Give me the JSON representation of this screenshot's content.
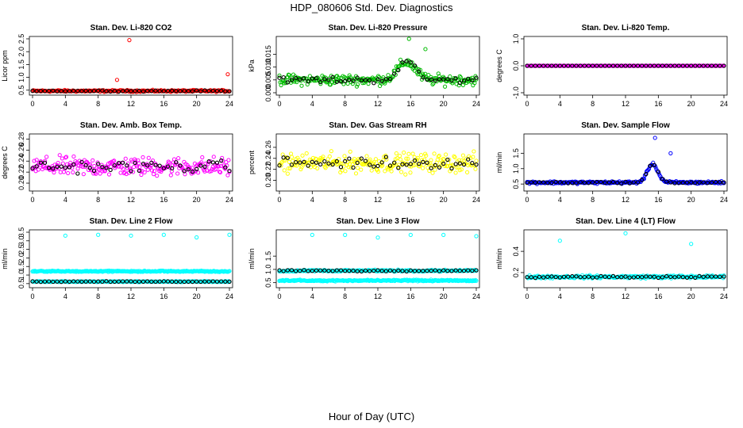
{
  "title": "HDP_080606  Std. Dev. Diagnostics",
  "xlabel": "Hour of Day (UTC)",
  "chart_data": [
    {
      "type": "scatter",
      "title": "Stan. Dev. Li-820 CO2",
      "ylabel": "Licor ppm",
      "color": "#ff0000",
      "xlim": [
        0,
        24
      ],
      "ylim": [
        0.4,
        2.5
      ],
      "xticks": [
        "0",
        "4",
        "8",
        "12",
        "16",
        "20",
        "24"
      ],
      "yticks": [
        "0.5",
        "1.0",
        "1.5",
        "2.0",
        "2.5"
      ],
      "ytick_values": [
        0.5,
        1.0,
        1.5,
        2.0,
        2.5
      ],
      "base": 0.47,
      "noise": 0.05,
      "bump_center": 15.5,
      "bump_height": 0,
      "bump_width": 1,
      "outliers": [
        [
          10.3,
          0.9
        ],
        [
          11.8,
          2.45
        ],
        [
          23.8,
          1.12
        ]
      ]
    },
    {
      "type": "scatter",
      "title": "Stan. Dev. Li-820 Pressure",
      "ylabel": "kPa",
      "color": "#00bb00",
      "xlim": [
        0,
        24
      ],
      "ylim": [
        0,
        0.021
      ],
      "xticks": [
        "0",
        "4",
        "8",
        "12",
        "16",
        "20",
        "24"
      ],
      "yticks": [
        "0.000",
        "0.005",
        "0.010",
        "0.015"
      ],
      "ytick_values": [
        0,
        0.005,
        0.01,
        0.015
      ],
      "base": 0.005,
      "noise": 0.003,
      "bump_center": 15.5,
      "bump_height": 0.007,
      "bump_width": 1.5,
      "outliers": [
        [
          15.8,
          0.021
        ],
        [
          17.8,
          0.017
        ]
      ]
    },
    {
      "type": "scatter",
      "title": "Stan. Dev. Li-820 Temp.",
      "ylabel": "degrees C",
      "color": "#ff00ff",
      "xlim": [
        0,
        24
      ],
      "ylim": [
        -1,
        1
      ],
      "xticks": [
        "0",
        "4",
        "8",
        "12",
        "16",
        "20",
        "24"
      ],
      "yticks": [
        "-1.0",
        "0.0",
        "1.0"
      ],
      "ytick_values": [
        -1,
        0,
        1
      ],
      "base": 0,
      "noise": 0,
      "bump_center": 15.5,
      "bump_height": 0,
      "bump_width": 1,
      "outliers": []
    },
    {
      "type": "scatter",
      "title": "Stan. Dev. Amb. Box Temp.",
      "ylabel": "degrees C",
      "color": "#ff00ff",
      "xlim": [
        0,
        24
      ],
      "ylim": [
        0.19,
        0.285
      ],
      "xticks": [
        "0",
        "4",
        "8",
        "12",
        "16",
        "20",
        "24"
      ],
      "yticks": [
        "0.20",
        "0.22",
        "0.24",
        "0.26",
        "0.28"
      ],
      "ytick_values": [
        0.2,
        0.22,
        0.24,
        0.26,
        0.28
      ],
      "base": 0.23,
      "noise": 0.025,
      "bump_center": 15.5,
      "bump_height": 0,
      "bump_width": 1,
      "outliers": []
    },
    {
      "type": "scatter",
      "title": "Stan. Dev. Gas Stream RH",
      "ylabel": "percent",
      "color": "#ffff00",
      "xlim": [
        0,
        24
      ],
      "ylim": [
        0.185,
        0.28
      ],
      "xticks": [
        "0",
        "4",
        "8",
        "12",
        "16",
        "20",
        "24"
      ],
      "yticks": [
        "0.20",
        "0.22",
        "0.24",
        "0.26"
      ],
      "ytick_values": [
        0.2,
        0.22,
        0.24,
        0.26
      ],
      "base": 0.232,
      "noise": 0.025,
      "bump_center": 15.5,
      "bump_height": 0,
      "bump_width": 1,
      "outliers": []
    },
    {
      "type": "scatter",
      "title": "Stan. Dev. Sample Flow",
      "ylabel": "ml/min",
      "color": "#0000ff",
      "xlim": [
        0,
        24
      ],
      "ylim": [
        0.35,
        2.05
      ],
      "xticks": [
        "0",
        "4",
        "8",
        "12",
        "16",
        "20",
        "24"
      ],
      "yticks": [
        "0.5",
        "1.0",
        "1.5"
      ],
      "ytick_values": [
        0.5,
        1.0,
        1.5
      ],
      "base": 0.55,
      "noise": 0.06,
      "bump_center": 15.3,
      "bump_height": 0.6,
      "bump_width": 0.9,
      "outliers": [
        [
          15.6,
          2.0
        ],
        [
          17.5,
          1.5
        ]
      ]
    },
    {
      "type": "scatter",
      "title": "Stan. Dev. Line 2 Flow",
      "ylabel": "ml/min",
      "color": "#00ffff",
      "xlim": [
        0,
        24
      ],
      "ylim": [
        0.4,
        3.5
      ],
      "xticks": [
        "0",
        "4",
        "8",
        "12",
        "16",
        "20",
        "24"
      ],
      "yticks": [
        "0.5",
        "1.0",
        "1.5",
        "2.0",
        "2.5",
        "3.0",
        "3.5"
      ],
      "ytick_values": [
        0.5,
        1,
        1.5,
        2,
        2.5,
        3,
        3.5
      ],
      "base": 0.62,
      "noise": 0.04,
      "base2": 1.22,
      "noise2": 0.05,
      "bump_center": 15.5,
      "bump_height": 0,
      "bump_width": 1,
      "outliers": [
        [
          4,
          3.3
        ],
        [
          8,
          3.35
        ],
        [
          12,
          3.3
        ],
        [
          16,
          3.35
        ],
        [
          20,
          3.2
        ],
        [
          24,
          3.35
        ]
      ]
    },
    {
      "type": "scatter",
      "title": "Stan. Dev. Line 3 Flow",
      "ylabel": "ml/min",
      "color": "#00ffff",
      "xlim": [
        0,
        24
      ],
      "ylim": [
        0.4,
        2.4
      ],
      "xticks": [
        "0",
        "4",
        "8",
        "12",
        "16",
        "20",
        "24"
      ],
      "yticks": [
        "0.5",
        "1.0",
        "1.5"
      ],
      "ytick_values": [
        0.5,
        1,
        1.5
      ],
      "base": 0.95,
      "noise": 0.05,
      "base2": 0.58,
      "noise2": 0.04,
      "bump_center": 15.5,
      "bump_height": 0,
      "bump_width": 1,
      "outliers": [
        [
          4,
          2.3
        ],
        [
          8,
          2.3
        ],
        [
          12,
          2.2
        ],
        [
          16,
          2.3
        ],
        [
          20,
          2.3
        ],
        [
          24,
          2.25
        ]
      ]
    },
    {
      "type": "scatter",
      "title": "Stan. Dev. Line 4 (LT) Flow",
      "ylabel": "ml/min",
      "color": "#00ffff",
      "xlim": [
        0,
        24
      ],
      "ylim": [
        0.08,
        0.58
      ],
      "xticks": [
        "0",
        "4",
        "8",
        "12",
        "16",
        "20",
        "24"
      ],
      "yticks": [
        "0.2",
        "0.4"
      ],
      "ytick_values": [
        0.2,
        0.4
      ],
      "base": 0.16,
      "noise": 0.02,
      "bump_center": 15.5,
      "bump_height": 0,
      "bump_width": 1,
      "outliers": [
        [
          4,
          0.5
        ],
        [
          12,
          0.57
        ],
        [
          20,
          0.47
        ]
      ]
    }
  ]
}
